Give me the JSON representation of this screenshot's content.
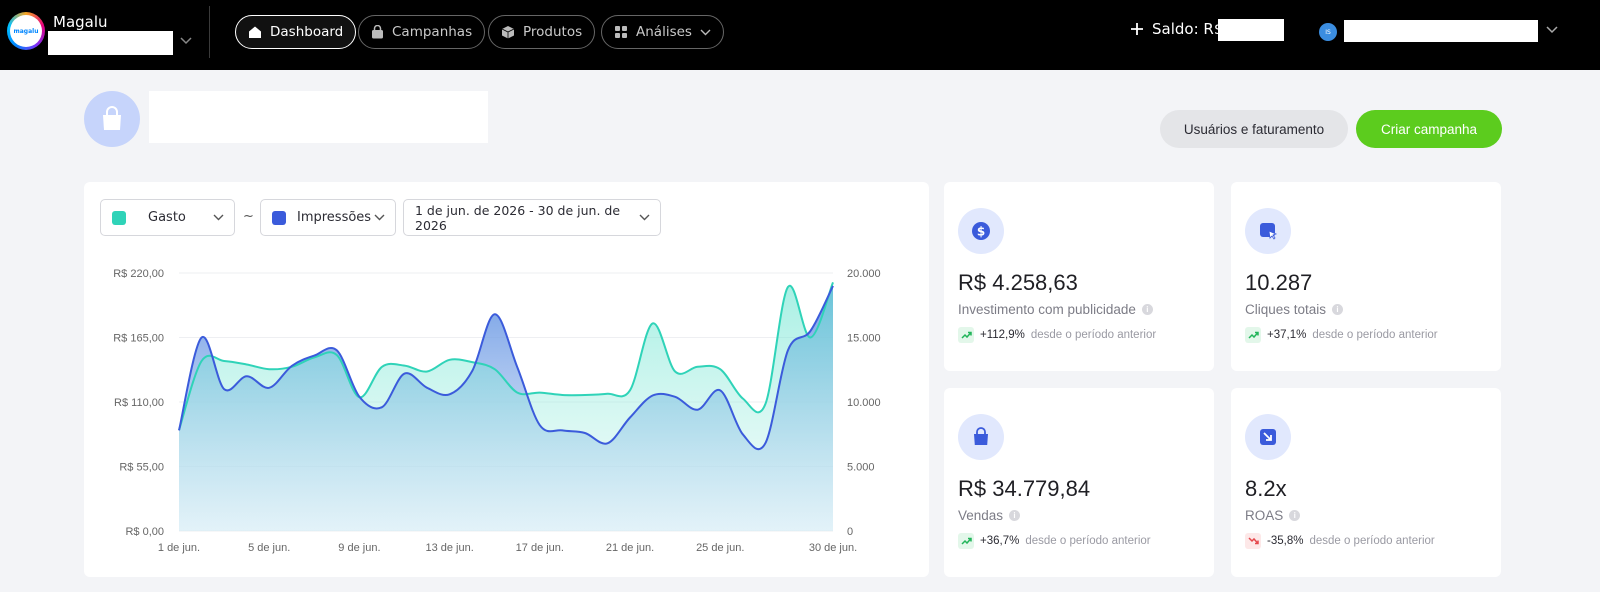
{
  "topbar": {
    "brand_name": "Magalu",
    "logo_text": "magalu",
    "nav": [
      {
        "label": "Dashboard",
        "icon": "home-icon",
        "active": true
      },
      {
        "label": "Campanhas",
        "icon": "bag-icon",
        "active": false
      },
      {
        "label": "Produtos",
        "icon": "box-icon",
        "active": false
      },
      {
        "label": "Análises",
        "icon": "grid-icon",
        "active": false
      }
    ],
    "saldo_label": "Saldo: R$",
    "user_initials": "IS"
  },
  "header": {
    "users_billing_label": "Usuários e faturamento",
    "create_campaign_label": "Criar campanha"
  },
  "chart_controls": {
    "metric_left": "Gasto",
    "separator": "~",
    "metric_right": "Impressões",
    "date_range": "1 de jun. de 2026 - 30 de jun. de 2026"
  },
  "colors": {
    "gasto": "#2fd3b8",
    "impressoes": "#3b5bdb",
    "accent_green": "#5ccc1e",
    "positive": "#22b55a",
    "negative": "#e5484d"
  },
  "chart_data": {
    "type": "area",
    "x_labels": [
      "1 de jun.",
      "5 de jun.",
      "9 de jun.",
      "13 de jun.",
      "17 de jun.",
      "21 de jun.",
      "25 de jun.",
      "30 de jun."
    ],
    "x_label_days": [
      1,
      5,
      9,
      13,
      17,
      21,
      25,
      30
    ],
    "y_left_ticks": [
      "R$ 0,00",
      "R$ 55,00",
      "R$ 110,00",
      "R$ 165,00",
      "R$ 220,00"
    ],
    "y_right_ticks": [
      "0",
      "5.000",
      "10.000",
      "15.000",
      "20.000"
    ],
    "y_left_range": [
      0,
      220
    ],
    "y_right_range": [
      0,
      20000
    ],
    "grid": "horizontal",
    "series": [
      {
        "name": "Gasto",
        "axis": "left",
        "x": [
          1,
          2,
          3,
          4,
          5,
          6,
          7,
          8,
          9,
          10,
          11,
          12,
          13,
          14,
          15,
          16,
          17,
          18,
          19,
          20,
          21,
          22,
          23,
          24,
          25,
          26,
          27,
          28,
          29,
          30
        ],
        "values": [
          86,
          145,
          145,
          142,
          138,
          140,
          148,
          150,
          114,
          140,
          141,
          136,
          146,
          144,
          138,
          118,
          118,
          116,
          116,
          117,
          120,
          177,
          136,
          140,
          138,
          113,
          108,
          208,
          165,
          212
        ]
      },
      {
        "name": "Impressões",
        "axis": "right",
        "x": [
          1,
          2,
          3,
          4,
          5,
          6,
          7,
          8,
          9,
          10,
          11,
          12,
          13,
          14,
          15,
          16,
          17,
          18,
          19,
          20,
          21,
          22,
          23,
          24,
          25,
          26,
          27,
          28,
          29,
          30
        ],
        "values": [
          7800,
          15000,
          11000,
          12000,
          11100,
          12800,
          13600,
          14000,
          10400,
          9600,
          12200,
          11100,
          10600,
          12400,
          16800,
          12700,
          8200,
          7800,
          7600,
          6800,
          8800,
          10500,
          10400,
          9400,
          10900,
          7500,
          6800,
          14000,
          15500,
          19000
        ]
      }
    ]
  },
  "metrics": [
    {
      "icon": "dollar-icon",
      "value": "R$ 4.258,63",
      "label": "Investimento com publicidade",
      "delta": "+112,9%",
      "trend": "up",
      "caption": "desde o período anterior"
    },
    {
      "icon": "cursor-icon",
      "value": "10.287",
      "label": "Cliques totais",
      "delta": "+37,1%",
      "trend": "up",
      "caption": "desde o período anterior"
    },
    {
      "icon": "shopping-bag-icon",
      "value": "R$ 34.779,84",
      "label": "Vendas",
      "delta": "+36,7%",
      "trend": "up",
      "caption": "desde o período anterior"
    },
    {
      "icon": "roas-icon",
      "value": "8.2x",
      "label": "ROAS",
      "delta": "-35,8%",
      "trend": "down",
      "caption": "desde o período anterior"
    }
  ]
}
